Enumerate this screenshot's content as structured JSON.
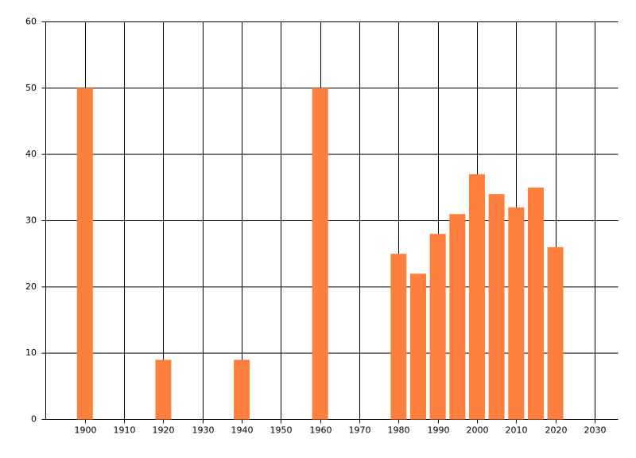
{
  "chart_data": {
    "type": "bar",
    "x": [
      1900,
      1920,
      1940,
      1960,
      1980,
      1985,
      1990,
      1995,
      2000,
      2005,
      2010,
      2015,
      2020
    ],
    "values": [
      50,
      9,
      9,
      50,
      25,
      22,
      28,
      31,
      37,
      34,
      32,
      35,
      26
    ],
    "color": "#ff7f3f",
    "xlim": [
      1890,
      2036
    ],
    "xticks": [
      1900,
      1910,
      1920,
      1930,
      1940,
      1950,
      1960,
      1970,
      1980,
      1990,
      2000,
      2010,
      2020,
      2030
    ],
    "ylim": [
      0,
      60
    ],
    "yticks": [
      0,
      10,
      20,
      30,
      40,
      50,
      60
    ],
    "grid": true
  }
}
